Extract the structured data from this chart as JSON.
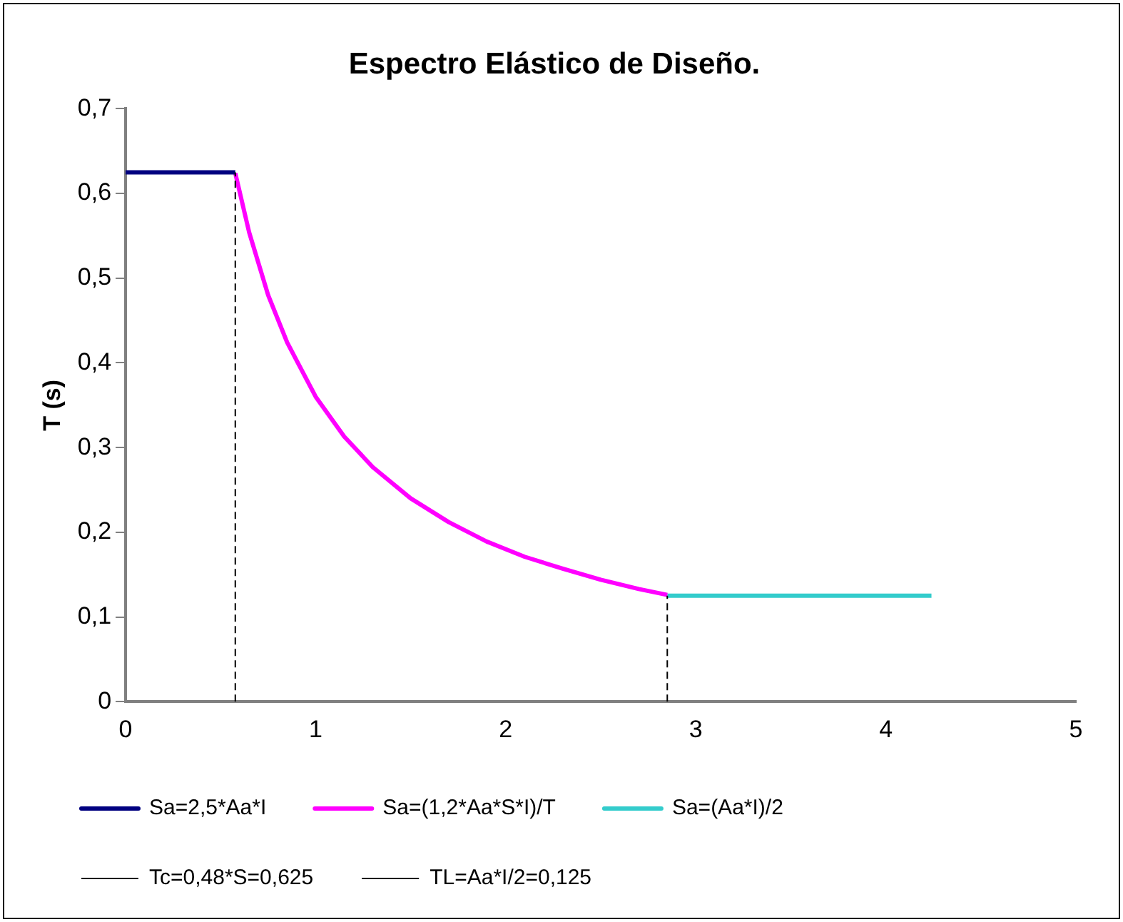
{
  "chart_data": {
    "type": "line",
    "title": "Espectro Elástico de Diseño.",
    "ylabel": "T (s)",
    "xlim": [
      0,
      5
    ],
    "xticks": [
      0,
      1,
      2,
      3,
      4,
      5
    ],
    "ylim": [
      0,
      0.7
    ],
    "yticks": [
      0,
      {
        "value": 0.1,
        "label": "0,1"
      },
      {
        "value": 0.2,
        "label": "0,2"
      },
      {
        "value": 0.3,
        "label": "0,3"
      },
      {
        "value": 0.4,
        "label": "0,4"
      },
      {
        "value": 0.5,
        "label": "0,5"
      },
      {
        "value": 0.6,
        "label": "0,6"
      },
      {
        "value": 0.7,
        "label": "0,7"
      }
    ],
    "grid": false,
    "legend": "bottom",
    "marker": "none",
    "series": [
      {
        "name": "Sa=2,5*Aa*I",
        "color": "#000080",
        "x": [
          0,
          0.577
        ],
        "values": [
          0.625,
          0.625
        ],
        "line_style": "solid"
      },
      {
        "name": "Sa=(1,2*Aa*S*I)/T",
        "color": "#ff00ff",
        "x": [
          0.577,
          0.65,
          0.75,
          0.85,
          1,
          1.15,
          1.3,
          1.5,
          1.7,
          1.9,
          2.1,
          2.3,
          2.5,
          2.7,
          2.85
        ],
        "values": [
          0.624,
          0.554,
          0.48,
          0.424,
          0.36,
          0.313,
          0.277,
          0.24,
          0.212,
          0.189,
          0.171,
          0.157,
          0.144,
          0.133,
          0.126
        ],
        "line_style": "solid"
      },
      {
        "name": "Sa=(Aa*I)/2",
        "color": "#33cccc",
        "x": [
          2.85,
          4.24
        ],
        "values": [
          0.125,
          0.125
        ],
        "line_style": "solid"
      },
      {
        "name": "Tc=0,48*S=0,625",
        "color": "#000000",
        "x": [
          0.577,
          0.577
        ],
        "values": [
          0,
          0.625
        ],
        "line_style": "dashed"
      },
      {
        "name": "TL=Aa*I/2=0,125",
        "color": "#000000",
        "x": [
          2.85,
          2.85
        ],
        "values": [
          0,
          0.125
        ],
        "line_style": "dashed"
      }
    ]
  }
}
